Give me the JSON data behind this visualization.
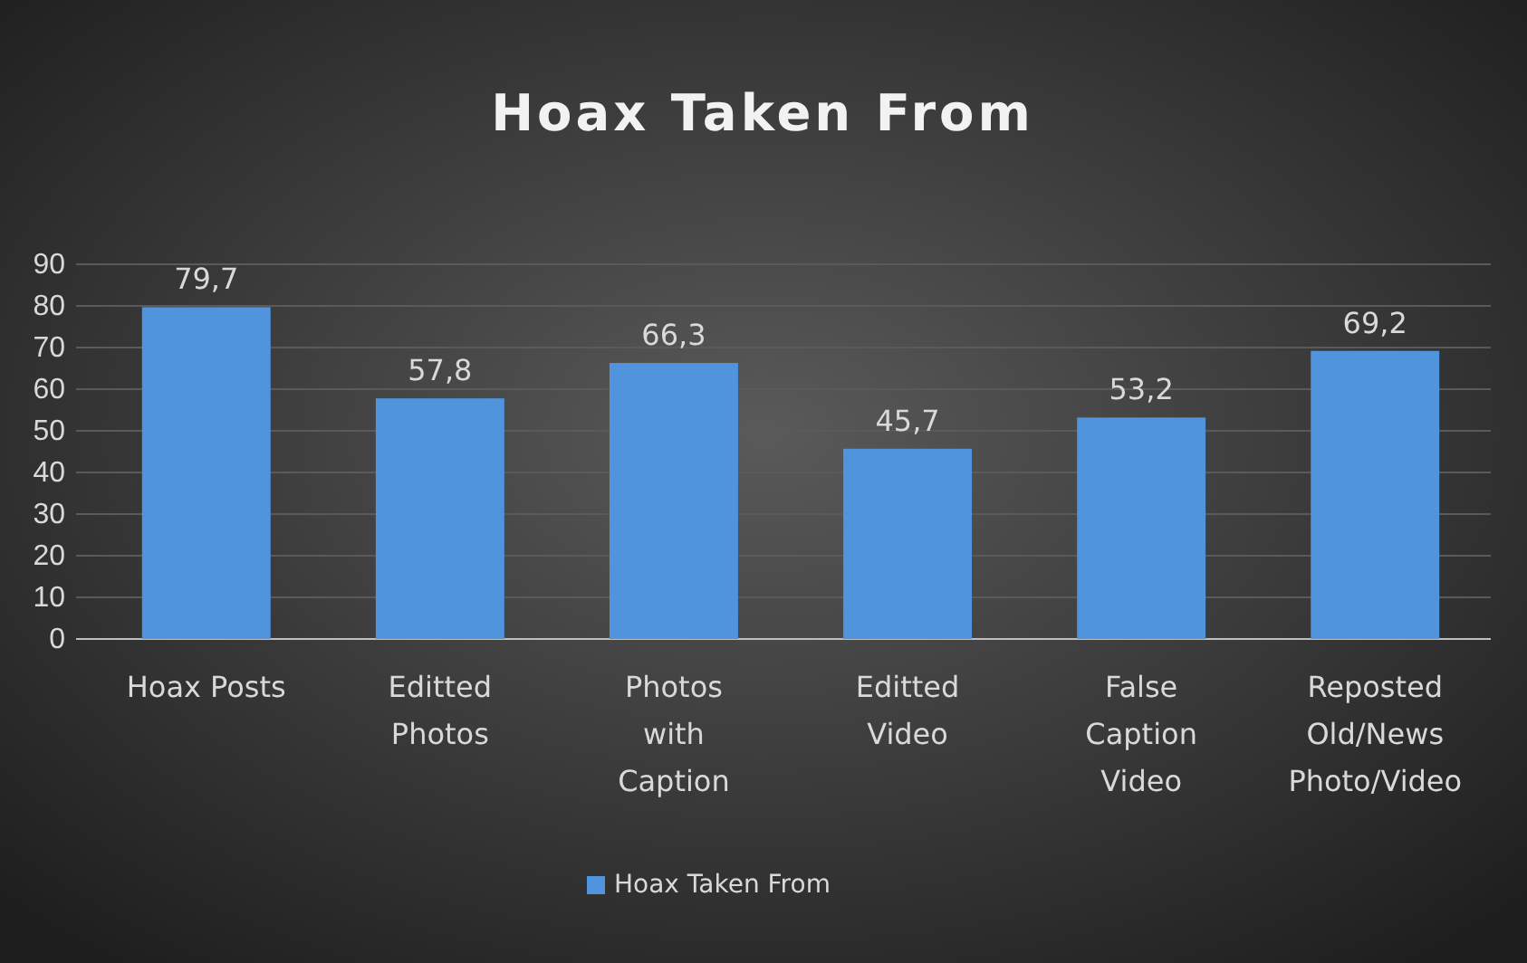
{
  "chart_data": {
    "type": "bar",
    "title": "Hoax Taken From",
    "categories": [
      "Hoax Posts",
      "Editted Photos",
      "Photos with Caption",
      "Editted Video",
      "False Caption Video",
      "Reposted Old/News Photo/Video"
    ],
    "series": [
      {
        "name": "Hoax Taken From",
        "color": "#4f94dc",
        "values": [
          79.7,
          57.8,
          66.3,
          45.7,
          53.2,
          69.2
        ],
        "value_labels": [
          "79,7",
          "57,8",
          "66,3",
          "45,7",
          "53,2",
          "69,2"
        ]
      }
    ],
    "ylim": [
      0,
      90
    ],
    "yticks": [
      0,
      10,
      20,
      30,
      40,
      50,
      60,
      70,
      80,
      90
    ],
    "grid": "y",
    "legend": "bottom"
  }
}
